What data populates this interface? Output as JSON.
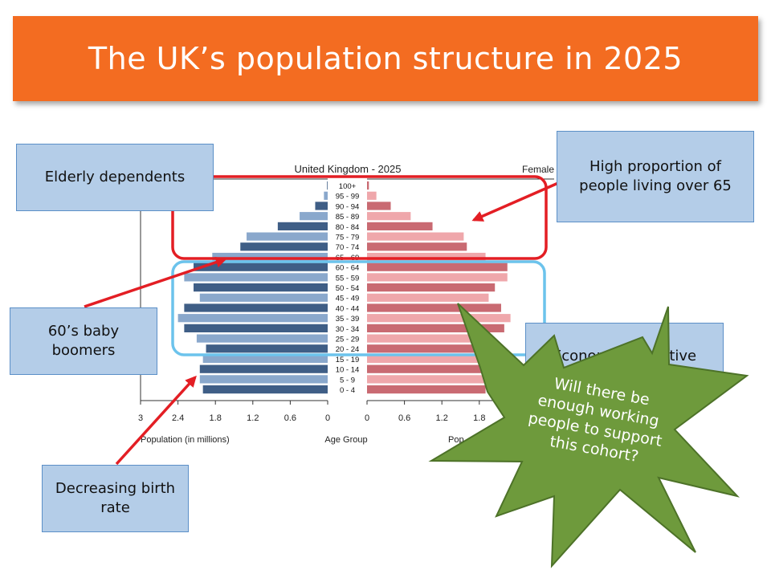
{
  "slide": {
    "title": "The UK’s population structure in 2025"
  },
  "callouts": {
    "elderly": "Elderly dependents",
    "high_prop": "High proportion of people living over 65",
    "baby_boomers": "60’s baby boomers",
    "birth_rate": "Decreasing birth rate",
    "econ_active": "Economically active",
    "star_text": "Will there be enough working people to support this cohort?"
  },
  "colors": {
    "banner": "#f36c21",
    "callout_fill": "#b4cde8",
    "arrow": "#e31e24",
    "elderly_box": "#e31e24",
    "active_box": "#6cc3ec",
    "star": "#6e9a3c",
    "male_dark": "#3f5e86",
    "male_light": "#8aa8cc",
    "female_dark": "#c96a72",
    "female_light": "#efa7ab"
  },
  "chart_data": {
    "type": "bar",
    "title": "United Kingdom - 2025",
    "xlabel_left": "Population (in millions)",
    "xlabel_center": "Age Group",
    "xlabel_right": "Pop",
    "legend_right": "Female",
    "x_ticks_left": [
      "3",
      "2.4",
      "1.8",
      "1.2",
      "0.6",
      "0"
    ],
    "x_ticks_right": [
      "0",
      "0.6",
      "1.2",
      "1.8"
    ],
    "xlim": [
      0,
      3
    ],
    "categories": [
      "0 - 4",
      "5 - 9",
      "10 - 14",
      "15 - 19",
      "20 - 24",
      "25 - 29",
      "30 - 34",
      "35 - 39",
      "40 - 44",
      "45 - 49",
      "50 - 54",
      "55 - 59",
      "60 - 64",
      "65 - 69",
      "70 - 74",
      "75 - 79",
      "80 - 84",
      "85 - 89",
      "90 - 94",
      "95 - 99",
      "100+"
    ],
    "series": [
      {
        "side": "male",
        "values": [
          2.0,
          2.05,
          2.05,
          2.0,
          1.95,
          2.1,
          2.3,
          2.4,
          2.3,
          2.05,
          2.15,
          2.3,
          2.15,
          1.85,
          1.4,
          1.3,
          0.8,
          0.45,
          0.2,
          0.06,
          0.01
        ]
      },
      {
        "side": "female",
        "values": [
          1.9,
          1.95,
          1.9,
          1.95,
          1.9,
          2.0,
          2.2,
          2.3,
          2.15,
          1.95,
          2.05,
          2.25,
          2.25,
          1.9,
          1.6,
          1.55,
          1.05,
          0.7,
          0.38,
          0.15,
          0.03
        ]
      }
    ]
  }
}
